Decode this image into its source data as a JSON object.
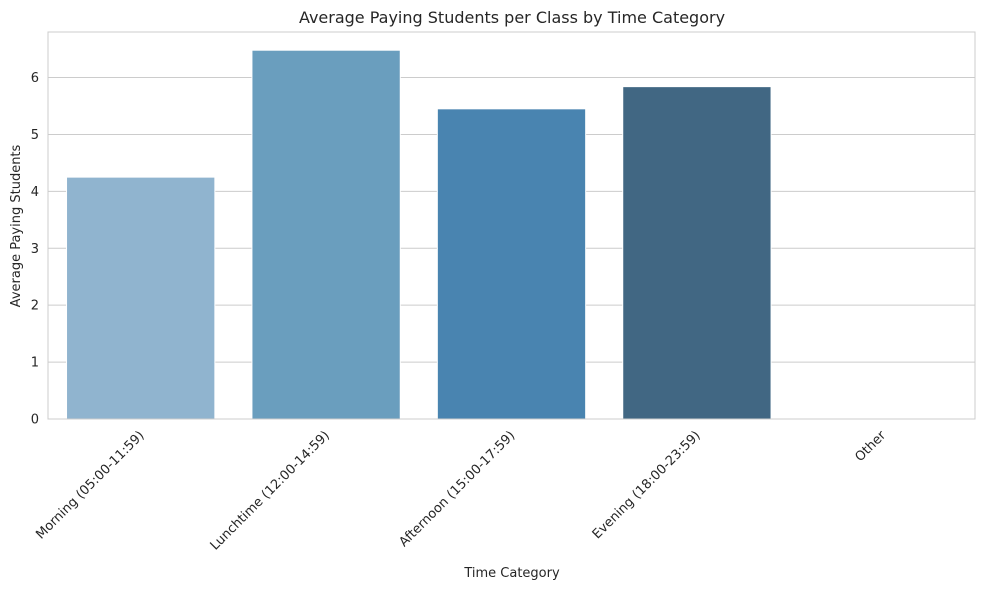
{
  "chart_data": {
    "type": "bar",
    "title": "Average Paying Students per Class by Time Category",
    "xlabel": "Time Category",
    "ylabel": "Average Paying Students",
    "categories": [
      "Morning (05:00-11:59)",
      "Lunchtime (12:00-14:59)",
      "Afternoon (15:00-17:59)",
      "Evening (18:00-23:59)",
      "Other"
    ],
    "values": [
      4.25,
      6.48,
      5.45,
      5.84,
      0
    ],
    "colors": [
      "#90b4cf",
      "#6a9ebe",
      "#4984b0",
      "#416783",
      "#2c4d63"
    ],
    "ylim": [
      0,
      6.8
    ],
    "yticks": [
      0,
      1,
      2,
      3,
      4,
      5,
      6
    ],
    "grid": true,
    "legend": "none"
  }
}
